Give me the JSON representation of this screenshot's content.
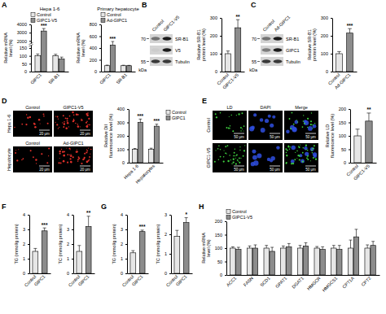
{
  "chart_data": [
    {
      "type": "bar",
      "title": "Hepa 1-6",
      "categories": [
        "GIPC1",
        "SR-B1"
      ],
      "series": [
        {
          "name": "Control",
          "color": "#e6e6e6",
          "values": [
            100,
            100
          ],
          "errors": [
            12,
            10
          ]
        },
        {
          "name": "GIPC1-V5",
          "color": "#8c8c8c",
          "values": [
            3200,
            80
          ],
          "errors": [
            300,
            12
          ],
          "significance": [
            "***",
            null
          ]
        }
      ],
      "y_label": "Relative mRNA level (%)",
      "ylim": [
        0,
        4000
      ],
      "yticks": [
        0,
        50,
        100,
        150,
        2000,
        3000,
        4000
      ],
      "axis_break": [
        150,
        2000
      ],
      "legend": "top"
    },
    {
      "type": "bar",
      "title": "Primary hepatocyte",
      "categories": [
        "GIPC1",
        "SR-B1"
      ],
      "series": [
        {
          "name": "Control",
          "color": "#e6e6e6",
          "values": [
            100,
            100
          ],
          "errors": [
            10,
            8
          ]
        },
        {
          "name": "Ad-GIPC1",
          "color": "#8c8c8c",
          "values": [
            450,
            100
          ],
          "errors": [
            60,
            6
          ],
          "significance": [
            "***",
            null
          ]
        }
      ],
      "y_label": "Relative mRNA level (%)",
      "ylim": [
        0,
        800
      ],
      "yticks": [
        0,
        200,
        400,
        600,
        800
      ],
      "legend": "top"
    },
    {
      "type": "bar",
      "categories": [
        "Control",
        "GIPC1-V5"
      ],
      "values": [
        100,
        245
      ],
      "errors": [
        15,
        45
      ],
      "colors": [
        "#e6e6e6",
        "#8c8c8c"
      ],
      "significance": [
        null,
        "**"
      ],
      "y_label": "Relative SR-B1 protein level (%)",
      "ylim": [
        0,
        300
      ],
      "yticks": [
        0,
        100,
        200,
        300
      ]
    },
    {
      "type": "bar",
      "categories": [
        "Control",
        "Ad-GIPC1"
      ],
      "values": [
        100,
        215
      ],
      "errors": [
        12,
        25
      ],
      "colors": [
        "#e6e6e6",
        "#8c8c8c"
      ],
      "significance": [
        null,
        "***"
      ],
      "y_label": "Relative SR-B1 protein level (%)",
      "ylim": [
        0,
        300
      ],
      "yticks": [
        0,
        100,
        200,
        300
      ]
    },
    {
      "type": "bar",
      "categories": [
        "Hepa 1-6",
        "Hepatocytes"
      ],
      "series": [
        {
          "name": "Control",
          "color": "#e6e6e6",
          "values": [
            100,
            100
          ],
          "errors": [
            6,
            8
          ]
        },
        {
          "name": "GIPC1",
          "color": "#8c8c8c",
          "values": [
            300,
            272
          ],
          "errors": [
            25,
            15
          ],
          "significance": [
            "***",
            "***"
          ]
        }
      ],
      "y_label": "Relative DiI fluorescence level (%)",
      "ylim": [
        0,
        400
      ],
      "yticks": [
        0,
        100,
        200,
        300,
        400
      ],
      "legend": "right"
    },
    {
      "type": "bar",
      "categories": [
        "Control",
        "GIPC1-V5"
      ],
      "values": [
        100,
        155
      ],
      "errors": [
        25,
        30
      ],
      "colors": [
        "#e6e6e6",
        "#8c8c8c"
      ],
      "significance": [
        null,
        "**"
      ],
      "y_label": "Relative LD fluorescence level (%)",
      "ylim": [
        0,
        200
      ],
      "yticks": [
        0,
        50,
        100,
        150,
        200
      ]
    },
    {
      "type": "bar",
      "categories": [
        "Control",
        "GIPC1"
      ],
      "values": [
        1.5,
        2.9
      ],
      "errors": [
        0.2,
        0.2
      ],
      "colors": [
        "#e6e6e6",
        "#8c8c8c"
      ],
      "significance": [
        null,
        "***"
      ],
      "y_label": "TG (mmol/g protein)",
      "ylim": [
        0,
        4
      ],
      "yticks": [
        0,
        1,
        2,
        3,
        4
      ]
    },
    {
      "type": "bar",
      "categories": [
        "Control",
        "GIPC1"
      ],
      "values": [
        1.5,
        3.2
      ],
      "errors": [
        0.4,
        0.7
      ],
      "colors": [
        "#e6e6e6",
        "#8c8c8c"
      ],
      "significance": [
        null,
        "**"
      ],
      "y_label": "TC (mmol/g protein)",
      "ylim": [
        0,
        4
      ],
      "yticks": [
        0,
        1,
        2,
        3,
        4
      ]
    },
    {
      "type": "bar",
      "categories": [
        "Control",
        "GIPC1"
      ],
      "values": [
        1.4,
        2.85
      ],
      "errors": [
        0.15,
        0.1
      ],
      "colors": [
        "#e6e6e6",
        "#8c8c8c"
      ],
      "significance": [
        null,
        "***"
      ],
      "y_label": "TG (mmol/g protein)",
      "ylim": [
        0,
        4
      ],
      "yticks": [
        0,
        1,
        2,
        3,
        4
      ]
    },
    {
      "type": "bar",
      "categories": [
        "Control",
        "GIPC1"
      ],
      "values": [
        1.9,
        2.6
      ],
      "errors": [
        0.3,
        0.25
      ],
      "colors": [
        "#e6e6e6",
        "#8c8c8c"
      ],
      "significance": [
        null,
        "*"
      ],
      "y_label": "TC (mmol/g protein)",
      "ylim": [
        0,
        3
      ],
      "yticks": [
        0,
        1,
        2,
        3
      ]
    },
    {
      "type": "bar",
      "categories": [
        "ACC1",
        "FASN",
        "SCD1",
        "GPAT1",
        "DGAT1",
        "HMGCR",
        "HMGCS1",
        "CPT1A",
        "CPT2"
      ],
      "series": [
        {
          "name": "Control",
          "color": "#e6e6e6",
          "values": [
            100,
            100,
            100,
            100,
            100,
            100,
            100,
            100,
            100
          ],
          "errors": [
            5,
            8,
            10,
            8,
            10,
            6,
            10,
            30,
            12
          ]
        },
        {
          "name": "GIPC1-V5",
          "color": "#8c8c8c",
          "values": [
            95,
            100,
            88,
            105,
            108,
            95,
            95,
            142,
            110
          ],
          "errors": [
            8,
            12,
            15,
            12,
            12,
            10,
            15,
            28,
            15
          ]
        }
      ],
      "y_label": "Relative mRNA level (%)",
      "ylim": [
        0,
        200
      ],
      "yticks": [
        0,
        50,
        100,
        150,
        200
      ],
      "legend": "top"
    }
  ],
  "panel_letters": [
    "A",
    "B",
    "C",
    "D",
    "E",
    "F",
    "G",
    "H"
  ],
  "blots": [
    {
      "columns": [
        "Control",
        "GIPC1-V5"
      ],
      "rows": [
        "SR-B1",
        "V5",
        "Tubulin"
      ],
      "markers": [
        70,
        55
      ],
      "marker_unit": "kDa"
    },
    {
      "columns": [
        "Control",
        "Ad-GIPC1"
      ],
      "rows": [
        "SR-B1",
        "GIPC1",
        "Tubulin"
      ],
      "markers": [
        70,
        55
      ],
      "marker_unit": "kDa"
    }
  ],
  "micrographs": [
    {
      "rows": [
        {
          "label": "Hepa 1-6",
          "columns": [
            "Control",
            "GIPC1-V5"
          ]
        },
        {
          "label": "Hepatocyte",
          "columns": [
            "Control",
            "Ad-GIPC1"
          ]
        }
      ],
      "scale_bar": "20 μm"
    },
    {
      "columns": [
        "LD",
        "DAPI",
        "Merge"
      ],
      "rows": [
        "Control",
        "GIPC1-V5"
      ],
      "scale_bar": "50 μm"
    }
  ]
}
